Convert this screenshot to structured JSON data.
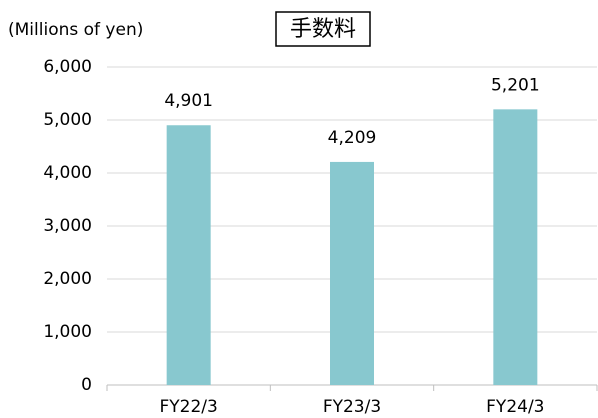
{
  "chart_data": {
    "type": "bar",
    "title": "手数料",
    "y_axis_label": "(Millions of yen)",
    "categories": [
      "FY22/3",
      "FY23/3",
      "FY24/3"
    ],
    "values": [
      4901,
      4209,
      5201
    ],
    "value_labels": [
      "4,901",
      "4,209",
      "5,201"
    ],
    "color": "#88c8cf",
    "ylim": [
      0,
      6000
    ],
    "yticks": [
      0,
      {
        "value": 1000,
        "label": "1,000"
      },
      {
        "value": 2000,
        "label": "2,000"
      },
      {
        "value": 3000,
        "label": "3,000"
      },
      {
        "value": 4000,
        "label": "4,000"
      },
      {
        "value": 5000,
        "label": "5,000"
      },
      {
        "value": 6000,
        "label": "6,000"
      }
    ],
    "grid": true
  }
}
